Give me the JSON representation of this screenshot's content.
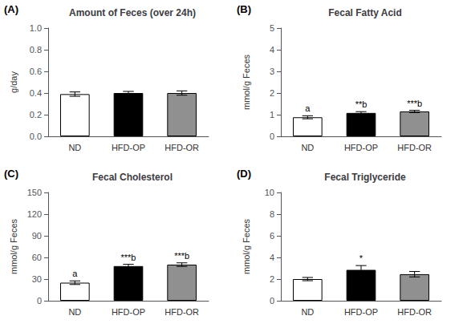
{
  "chart_data": [
    {
      "type": "bar",
      "panel_label": "(A)",
      "title": "Amount of Feces (over 24h)",
      "ylabel": "g/day",
      "categories": [
        "ND",
        "HFD-OP",
        "HFD-OR"
      ],
      "values": [
        0.39,
        0.4,
        0.4
      ],
      "errors": [
        0.02,
        0.015,
        0.02
      ],
      "colors": [
        "white",
        "black",
        "#909090"
      ],
      "ylim": [
        0,
        1.0
      ],
      "yticks": [
        {
          "value": 0,
          "label": "0.0"
        },
        0.2,
        0.4,
        0.6,
        0.8,
        {
          "value": 1,
          "label": "1.0"
        }
      ],
      "grid": false
    },
    {
      "type": "bar",
      "panel_label": "(B)",
      "title": "Fecal Fatty Acid",
      "ylabel": "mmol/g Feces",
      "categories": [
        "ND",
        "HFD-OP",
        "HFD-OR"
      ],
      "values": [
        0.88,
        1.08,
        1.15
      ],
      "errors": [
        0.07,
        0.06,
        0.05
      ],
      "colors": [
        "white",
        "black",
        "#909090"
      ],
      "ylim": [
        0,
        5
      ],
      "yticks": [
        0,
        1,
        2,
        3,
        4,
        5
      ],
      "annotations": [
        "a",
        "**b",
        "***b"
      ],
      "grid": false
    },
    {
      "type": "bar",
      "panel_label": "(C)",
      "title": "Fecal Cholesterol",
      "ylabel": "mmol/g Feces",
      "categories": [
        "ND",
        "HFD-OP",
        "HFD-OR"
      ],
      "values": [
        25,
        48,
        50
      ],
      "errors": [
        2.5,
        2.5,
        2.5
      ],
      "colors": [
        "white",
        "black",
        "#909090"
      ],
      "ylim": [
        0,
        150
      ],
      "yticks": [
        0,
        30,
        60,
        90,
        120,
        150
      ],
      "annotations": [
        "a",
        "***b",
        "***b"
      ],
      "grid": false
    },
    {
      "type": "bar",
      "panel_label": "(D)",
      "title": "Fecal Triglyceride",
      "ylabel": "mmol/g Feces",
      "categories": [
        "ND",
        "HFD-OP",
        "HFD-OR"
      ],
      "values": [
        2.0,
        2.85,
        2.45
      ],
      "errors": [
        0.15,
        0.4,
        0.25
      ],
      "colors": [
        "white",
        "black",
        "#909090"
      ],
      "ylim": [
        0,
        10
      ],
      "yticks": [
        0,
        2,
        4,
        6,
        8,
        10
      ],
      "annotations": [
        null,
        "*",
        null
      ],
      "grid": false
    }
  ]
}
